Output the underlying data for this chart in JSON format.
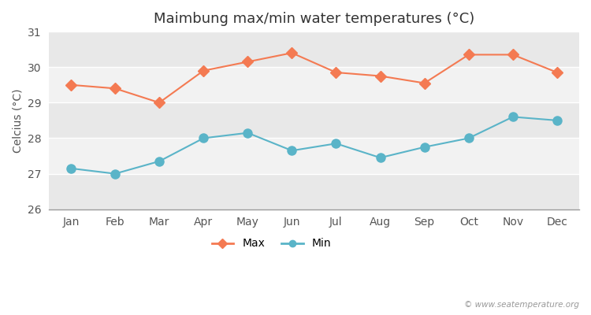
{
  "title": "Maimbung max/min water temperatures (°C)",
  "ylabel": "Celcius (°C)",
  "months": [
    "Jan",
    "Feb",
    "Mar",
    "Apr",
    "May",
    "Jun",
    "Jul",
    "Aug",
    "Sep",
    "Oct",
    "Nov",
    "Dec"
  ],
  "max_temps": [
    29.5,
    29.4,
    29.0,
    29.9,
    30.15,
    30.4,
    29.85,
    29.75,
    29.55,
    30.35,
    30.35,
    29.85
  ],
  "min_temps": [
    27.15,
    27.0,
    27.35,
    28.0,
    28.15,
    27.65,
    27.85,
    27.45,
    27.75,
    28.0,
    28.6,
    28.5
  ],
  "max_color": "#f47a52",
  "min_color": "#5ab4c8",
  "ylim": [
    26,
    31
  ],
  "yticks": [
    26,
    27,
    28,
    29,
    30,
    31
  ],
  "figure_bg": "#ffffff",
  "plot_bg": "#e8e8e8",
  "band_color_light": "#f2f2f2",
  "band_color_dark": "#e8e8e8",
  "grid_color": "#ffffff",
  "watermark": "© www.seatemperature.org",
  "legend_max": "Max",
  "legend_min": "Min",
  "title_fontsize": 13,
  "label_fontsize": 10,
  "tick_fontsize": 10,
  "marker_size_max": 7,
  "marker_size_min": 9
}
